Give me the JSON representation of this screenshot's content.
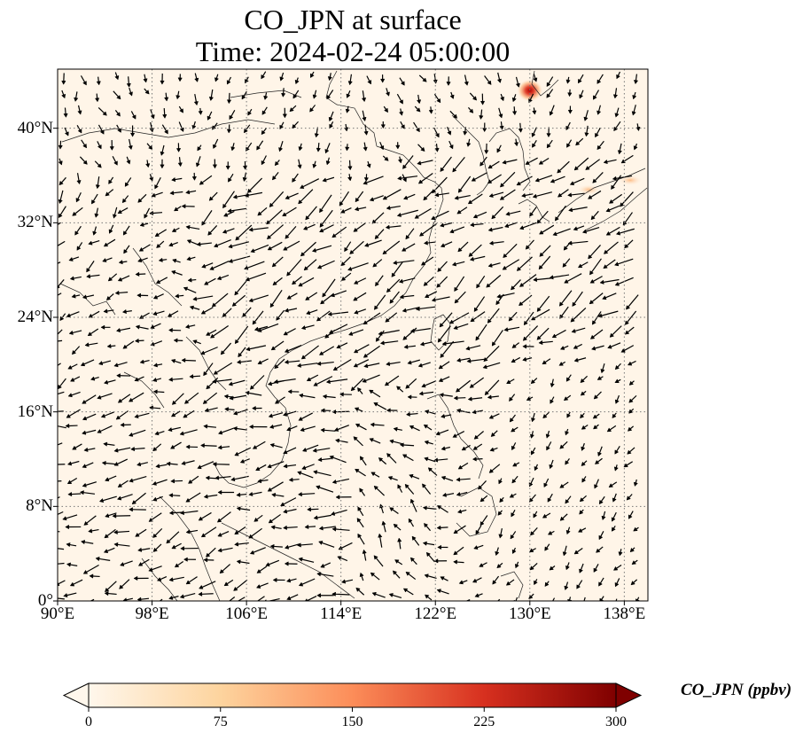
{
  "title_line1": "CO_JPN at surface",
  "title_line2": "Time: 2024-02-24 05:00:00",
  "map": {
    "lon_range": [
      90,
      140
    ],
    "lat_range": [
      0,
      45
    ],
    "lat_ticks": [
      {
        "value": 0,
        "label": "0°"
      },
      {
        "value": 8,
        "label": "8°N"
      },
      {
        "value": 16,
        "label": "16°N"
      },
      {
        "value": 24,
        "label": "24°N"
      },
      {
        "value": 32,
        "label": "32°N"
      },
      {
        "value": 40,
        "label": "40°N"
      }
    ],
    "lon_ticks": [
      {
        "value": 90,
        "label": "90°E"
      },
      {
        "value": 98,
        "label": "98°E"
      },
      {
        "value": 106,
        "label": "106°E"
      },
      {
        "value": 114,
        "label": "114°E"
      },
      {
        "value": 122,
        "label": "122°E"
      },
      {
        "value": 130,
        "label": "130°E"
      },
      {
        "value": 138,
        "label": "138°E"
      }
    ],
    "gridlines": "dotted",
    "background_color": "#fff5e8",
    "hotspots": [
      {
        "lon": 130.0,
        "lat": 43.2,
        "value": 260
      },
      {
        "lon": 138.5,
        "lat": 35.6,
        "value": 60
      },
      {
        "lon": 135.0,
        "lat": 34.8,
        "value": 40
      }
    ],
    "wind_field": "surface wind vectors"
  },
  "colorbar": {
    "label": "CO_JPN (ppbv)",
    "ticks": [
      {
        "value": 0,
        "label": "0"
      },
      {
        "value": 75,
        "label": "75"
      },
      {
        "value": 150,
        "label": "150"
      },
      {
        "value": 225,
        "label": "225"
      },
      {
        "value": 300,
        "label": "300"
      }
    ],
    "range": [
      0,
      300
    ],
    "colormap": "OrRd",
    "colors": [
      "#fff7ec",
      "#fdd49e",
      "#fc8d59",
      "#d7301f",
      "#7f0000"
    ]
  }
}
